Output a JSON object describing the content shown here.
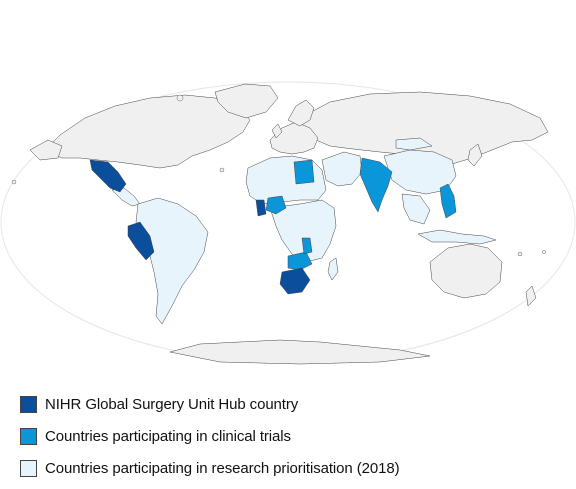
{
  "map": {
    "colors": {
      "hub": "#0b4f9c",
      "trials": "#0a96d8",
      "prioritisation": "#e8f4fc",
      "other": "#f0f0f0",
      "border": "#444444",
      "ocean_outline": "#e6e6e6"
    }
  },
  "legend": {
    "items": [
      {
        "label": "NIHR Global Surgery Unit Hub country",
        "color": "#0b4f9c"
      },
      {
        "label": "Countries participating in clinical trials",
        "color": "#0a96d8"
      },
      {
        "label": "Countries participating in research prioritisation (2018)",
        "color": "#e8f4fc"
      }
    ]
  }
}
